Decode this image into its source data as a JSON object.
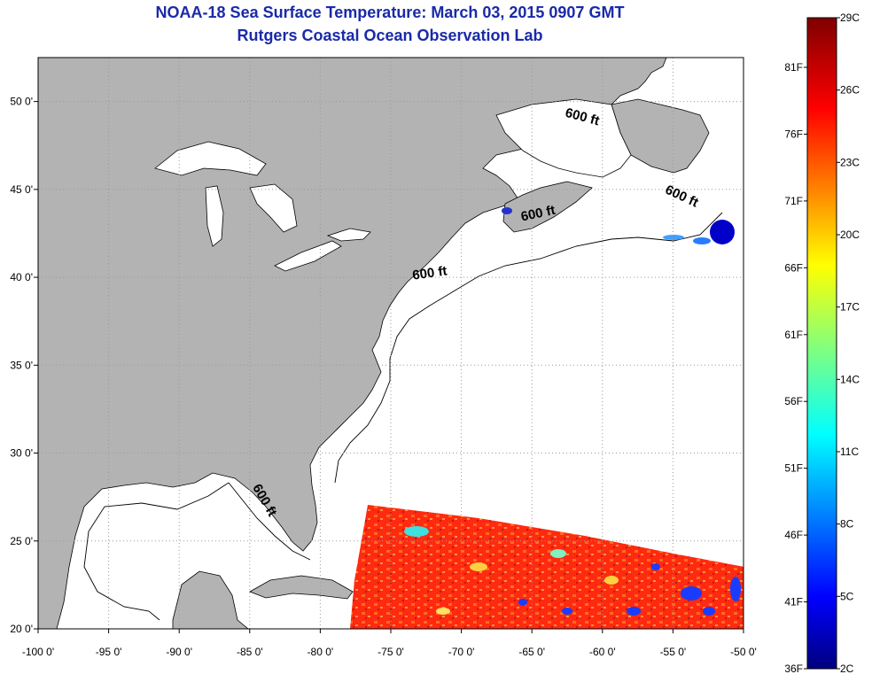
{
  "header": {
    "title_line1": "NOAA-18 Sea Surface Temperature:  March 03, 2015 0907 GMT",
    "title_line2": "Rutgers Coastal Ocean Observation Lab"
  },
  "map": {
    "lon_range": [
      -100,
      -50
    ],
    "lat_range": [
      20,
      52.5
    ],
    "lon_ticks": [
      {
        "value": -100,
        "label": "-100 0'"
      },
      {
        "value": -95,
        "label": "-95 0'"
      },
      {
        "value": -90,
        "label": "-90 0'"
      },
      {
        "value": -85,
        "label": "-85 0'"
      },
      {
        "value": -80,
        "label": "-80 0'"
      },
      {
        "value": -75,
        "label": "-75 0'"
      },
      {
        "value": -70,
        "label": "-70 0'"
      },
      {
        "value": -65,
        "label": "-65 0'"
      },
      {
        "value": -60,
        "label": "-60 0'"
      },
      {
        "value": -55,
        "label": "-55 0'"
      },
      {
        "value": -50,
        "label": "-50 0'"
      }
    ],
    "lat_ticks": [
      {
        "value": 20,
        "label": "20 0'"
      },
      {
        "value": 25,
        "label": "25 0'"
      },
      {
        "value": 30,
        "label": "30 0'"
      },
      {
        "value": 35,
        "label": "35 0'"
      },
      {
        "value": 40,
        "label": "40 0'"
      },
      {
        "value": 45,
        "label": "45 0'"
      },
      {
        "value": 50,
        "label": "50 0'"
      }
    ],
    "contour_labels": [
      {
        "text": "600 ft",
        "lon": -61.5,
        "lat": 48.9,
        "rotate": 15
      },
      {
        "text": "600 ft",
        "lon": -54.5,
        "lat": 44.4,
        "rotate": 25
      },
      {
        "text": "600 ft",
        "lon": -64.5,
        "lat": 43.4,
        "rotate": -12
      },
      {
        "text": "600 ft",
        "lon": -72.2,
        "lat": 40.0,
        "rotate": -8
      },
      {
        "text": "600 ft",
        "lon": -84.2,
        "lat": 27.2,
        "rotate": 60
      }
    ],
    "colors": {
      "land": "#b3b3b3",
      "ocean": "#ffffff",
      "grid": "#999999"
    }
  },
  "colorbar": {
    "celsius": [
      "29C",
      "26C",
      "23C",
      "20C",
      "17C",
      "14C",
      "11C",
      "8C",
      "5C",
      "2C"
    ],
    "fahrenheit": [
      "81F",
      "76F",
      "71F",
      "66F",
      "61F",
      "56F",
      "51F",
      "46F",
      "41F",
      "36F"
    ],
    "range_c": [
      2,
      29
    ],
    "colors": [
      "#000080",
      "#0000ff",
      "#00ffff",
      "#ffff00",
      "#ff0000",
      "#800000"
    ]
  }
}
